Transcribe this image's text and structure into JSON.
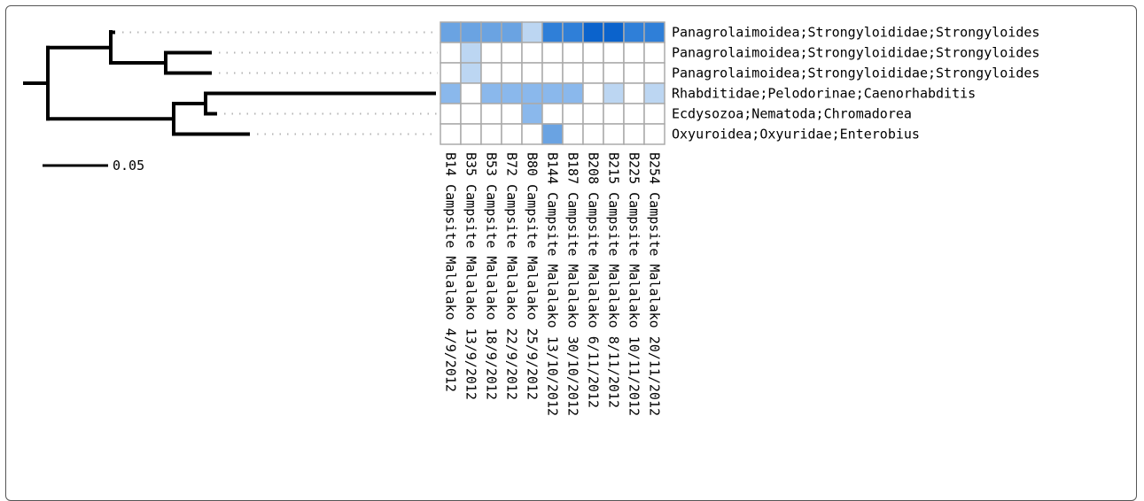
{
  "scale_bar": {
    "label": "0.05"
  },
  "taxa": [
    "Panagrolaimoidea;Strongyloididae;Strongyloides",
    "Panagrolaimoidea;Strongyloididae;Strongyloides",
    "Panagrolaimoidea;Strongyloididae;Strongyloides",
    "Rhabditidae;Pelodorinae;Caenorhabditis",
    "Ecdysozoa;Nematoda;Chromadorea",
    "Oxyuroidea;Oxyuridae;Enterobius"
  ],
  "samples": [
    "B14 Campsite Malalako 4/9/2012",
    "B35 Campsite Malalako 13/9/2012",
    "B53 Campsite Malalako 18/9/2012",
    "B72 Campsite Malalako 22/9/2012",
    "B80 Campsite Malalako 25/9/2012",
    "B144 Campsite Malalako 13/10/2012",
    "B187 Campsite Malalako 30/10/2012",
    "B208 Campsite Malalako 6/11/2012",
    "B215 Campsite Malalako 8/11/2012",
    "B225 Campsite Malalako 10/11/2012",
    "B254 Campsite Malalako 20/11/2012"
  ],
  "colors": {
    "empty": "#ffffff",
    "grid": "#aaaaaa",
    "levels": [
      "#ffffff",
      "#bcd6f2",
      "#8ab8ec",
      "#6aa3e2",
      "#2f7fd8",
      "#0b63cc"
    ],
    "branch": "#000000",
    "leader": "#b5b5b5"
  },
  "heatmap": [
    [
      3,
      3,
      3,
      3,
      1,
      4,
      4,
      5,
      5,
      4,
      4
    ],
    [
      0,
      1,
      0,
      0,
      0,
      0,
      0,
      0,
      0,
      0,
      0
    ],
    [
      0,
      1,
      0,
      0,
      0,
      0,
      0,
      0,
      0,
      0,
      0
    ],
    [
      2,
      0,
      2,
      2,
      2,
      2,
      2,
      0,
      1,
      0,
      1
    ],
    [
      0,
      0,
      0,
      0,
      2,
      0,
      0,
      0,
      0,
      0,
      0
    ],
    [
      0,
      0,
      0,
      0,
      0,
      3,
      0,
      0,
      0,
      0,
      0
    ]
  ]
}
